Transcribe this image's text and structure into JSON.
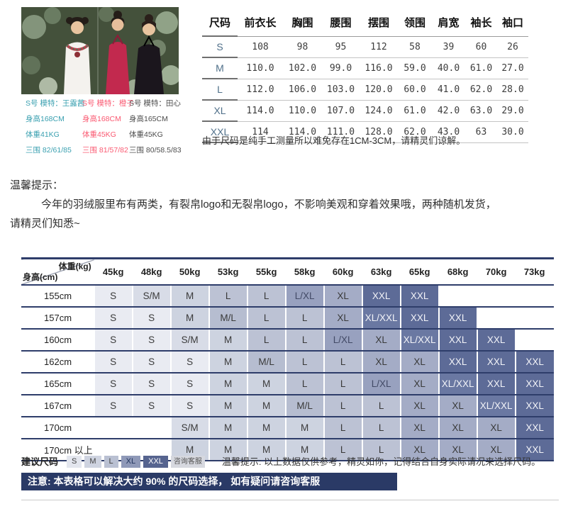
{
  "model_info": {
    "models": [
      {
        "title": "S号 模特：王露茜",
        "height": "身高168CM",
        "weight": "体重41KG",
        "measure": "三围 82/61/85",
        "color": "#3aa0b0"
      },
      {
        "title": "S号 模特：橙子",
        "height": "身高168CM",
        "weight": "体重45KG",
        "measure": "三围 81/57/82",
        "color": "#fa5a72"
      },
      {
        "title": "S号 模特：田心",
        "height": "身高165CM",
        "weight": "体重45KG",
        "measure": "三围 80/58.5/83",
        "color": "#4d4d4d"
      }
    ]
  },
  "spec_table": {
    "headers": [
      "尺码",
      "前衣长",
      "胸围",
      "腰围",
      "摆围",
      "领围",
      "肩宽",
      "袖长",
      "袖口"
    ],
    "rows": [
      [
        "S",
        "108",
        "98",
        "95",
        "112",
        "58",
        "39",
        "60",
        "26"
      ],
      [
        "M",
        "110.0",
        "102.0",
        "99.0",
        "116.0",
        "59.0",
        "40.0",
        "61.0",
        "27.0"
      ],
      [
        "L",
        "112.0",
        "106.0",
        "103.0",
        "120.0",
        "60.0",
        "41.0",
        "62.0",
        "28.0"
      ],
      [
        "XL",
        "114.0",
        "110.0",
        "107.0",
        "124.0",
        "61.0",
        "42.0",
        "63.0",
        "29.0"
      ],
      [
        "XXL",
        "114",
        "114.0",
        "111.0",
        "128.0",
        "62.0",
        "43.0",
        "63",
        "30.0"
      ]
    ],
    "note": "由于尺码是纯手工测量所以难免存在1CM-3CM，请精灵们谅解。"
  },
  "tips": {
    "title": "温馨提示：",
    "line1": "今年的羽绒服里布有两类，有裂帛logo和无裂帛logo，不影响美观和穿着效果哦，两种随机发货，",
    "line2": "请精灵们知悉~"
  },
  "size_matrix": {
    "corner_top": "体重(kg)",
    "corner_bottom": "身高(cm)",
    "weights": [
      "45kg",
      "48kg",
      "50kg",
      "53kg",
      "55kg",
      "58kg",
      "60kg",
      "63kg",
      "65kg",
      "68kg",
      "70kg",
      "73kg"
    ],
    "rows": [
      {
        "height": "155cm",
        "cells": [
          "S",
          "S/M",
          "M",
          "L",
          "L",
          "L/XL",
          "XL",
          "XXL",
          "XXL",
          "",
          "",
          ""
        ]
      },
      {
        "height": "157cm",
        "cells": [
          "S",
          "S",
          "M",
          "M/L",
          "L",
          "L",
          "XL",
          "XL/XXL",
          "XXL",
          "XXL",
          "",
          ""
        ]
      },
      {
        "height": "160cm",
        "cells": [
          "S",
          "S",
          "S/M",
          "M",
          "L",
          "L",
          "L/XL",
          "XL",
          "XL/XXL",
          "XXL",
          "XXL",
          ""
        ]
      },
      {
        "height": "162cm",
        "cells": [
          "S",
          "S",
          "S",
          "M",
          "M/L",
          "L",
          "L",
          "XL",
          "XL",
          "XXL",
          "XXL",
          "XXL"
        ]
      },
      {
        "height": "165cm",
        "cells": [
          "S",
          "S",
          "S",
          "M",
          "M",
          "L",
          "L",
          "L/XL",
          "XL",
          "XL/XXL",
          "XXL",
          "XXL"
        ]
      },
      {
        "height": "167cm",
        "cells": [
          "S",
          "S",
          "S",
          "M",
          "M",
          "M/L",
          "L",
          "L",
          "XL",
          "XL",
          "XL/XXL",
          "XXL"
        ]
      },
      {
        "height": "170cm",
        "cells": [
          "",
          "",
          "S/M",
          "M",
          "M",
          "M",
          "L",
          "L",
          "XL",
          "XL",
          "XL",
          "XXL"
        ]
      },
      {
        "height": "170cm 以上",
        "cells": [
          "",
          "",
          "M",
          "M",
          "M",
          "M",
          "L",
          "L",
          "XL",
          "XL",
          "XL",
          "XXL"
        ]
      }
    ],
    "cell_styles": {
      "S": {
        "bg": "#e9ebf2",
        "fg": "#3a3a3a"
      },
      "S/M": {
        "bg": "#d8dce7",
        "fg": "#3a3a3a"
      },
      "M": {
        "bg": "#cdd3e0",
        "fg": "#3a3a3a"
      },
      "M/L": {
        "bg": "#b6bdd0",
        "fg": "#3a3a3a"
      },
      "L": {
        "bg": "#bcc2d4",
        "fg": "#3a3a3a"
      },
      "L/XL": {
        "bg": "#98a1bf",
        "fg": "#424a66"
      },
      "XL": {
        "bg": "#a4acc6",
        "fg": "#3a3a3a"
      },
      "XL/XXL": {
        "bg": "#6a78a2",
        "fg": "#f2f3f8"
      },
      "XXL": {
        "bg": "#5d6b97",
        "fg": "#f2f3f8"
      }
    },
    "border_color": "#2e3d6a"
  },
  "footer": {
    "suggest_label": "建议尺码",
    "badges": [
      {
        "label": "S",
        "bg": "#e3e6ee",
        "fg": "#444444"
      },
      {
        "label": "M",
        "bg": "#ced3e0",
        "fg": "#444444"
      },
      {
        "label": "L",
        "bg": "#b9c0d2",
        "fg": "#444444"
      },
      {
        "label": "XL",
        "bg": "#8f99b8",
        "fg": "#23365e"
      },
      {
        "label": "XXL",
        "bg": "#56648f",
        "fg": "#ffffff"
      },
      {
        "label": "咨询客服",
        "bg": "#d6d8df",
        "fg": "#555555",
        "small": true
      }
    ],
    "tip": "温馨提示: 以上数据仅供参考，精灵如你，记得结合自身实际请况来选择尺码。",
    "notice": "注意: 本表格可以解决大约 90% 的尺码选择， 如有疑问请咨询客服",
    "notice_bg": "#2a3a66"
  }
}
